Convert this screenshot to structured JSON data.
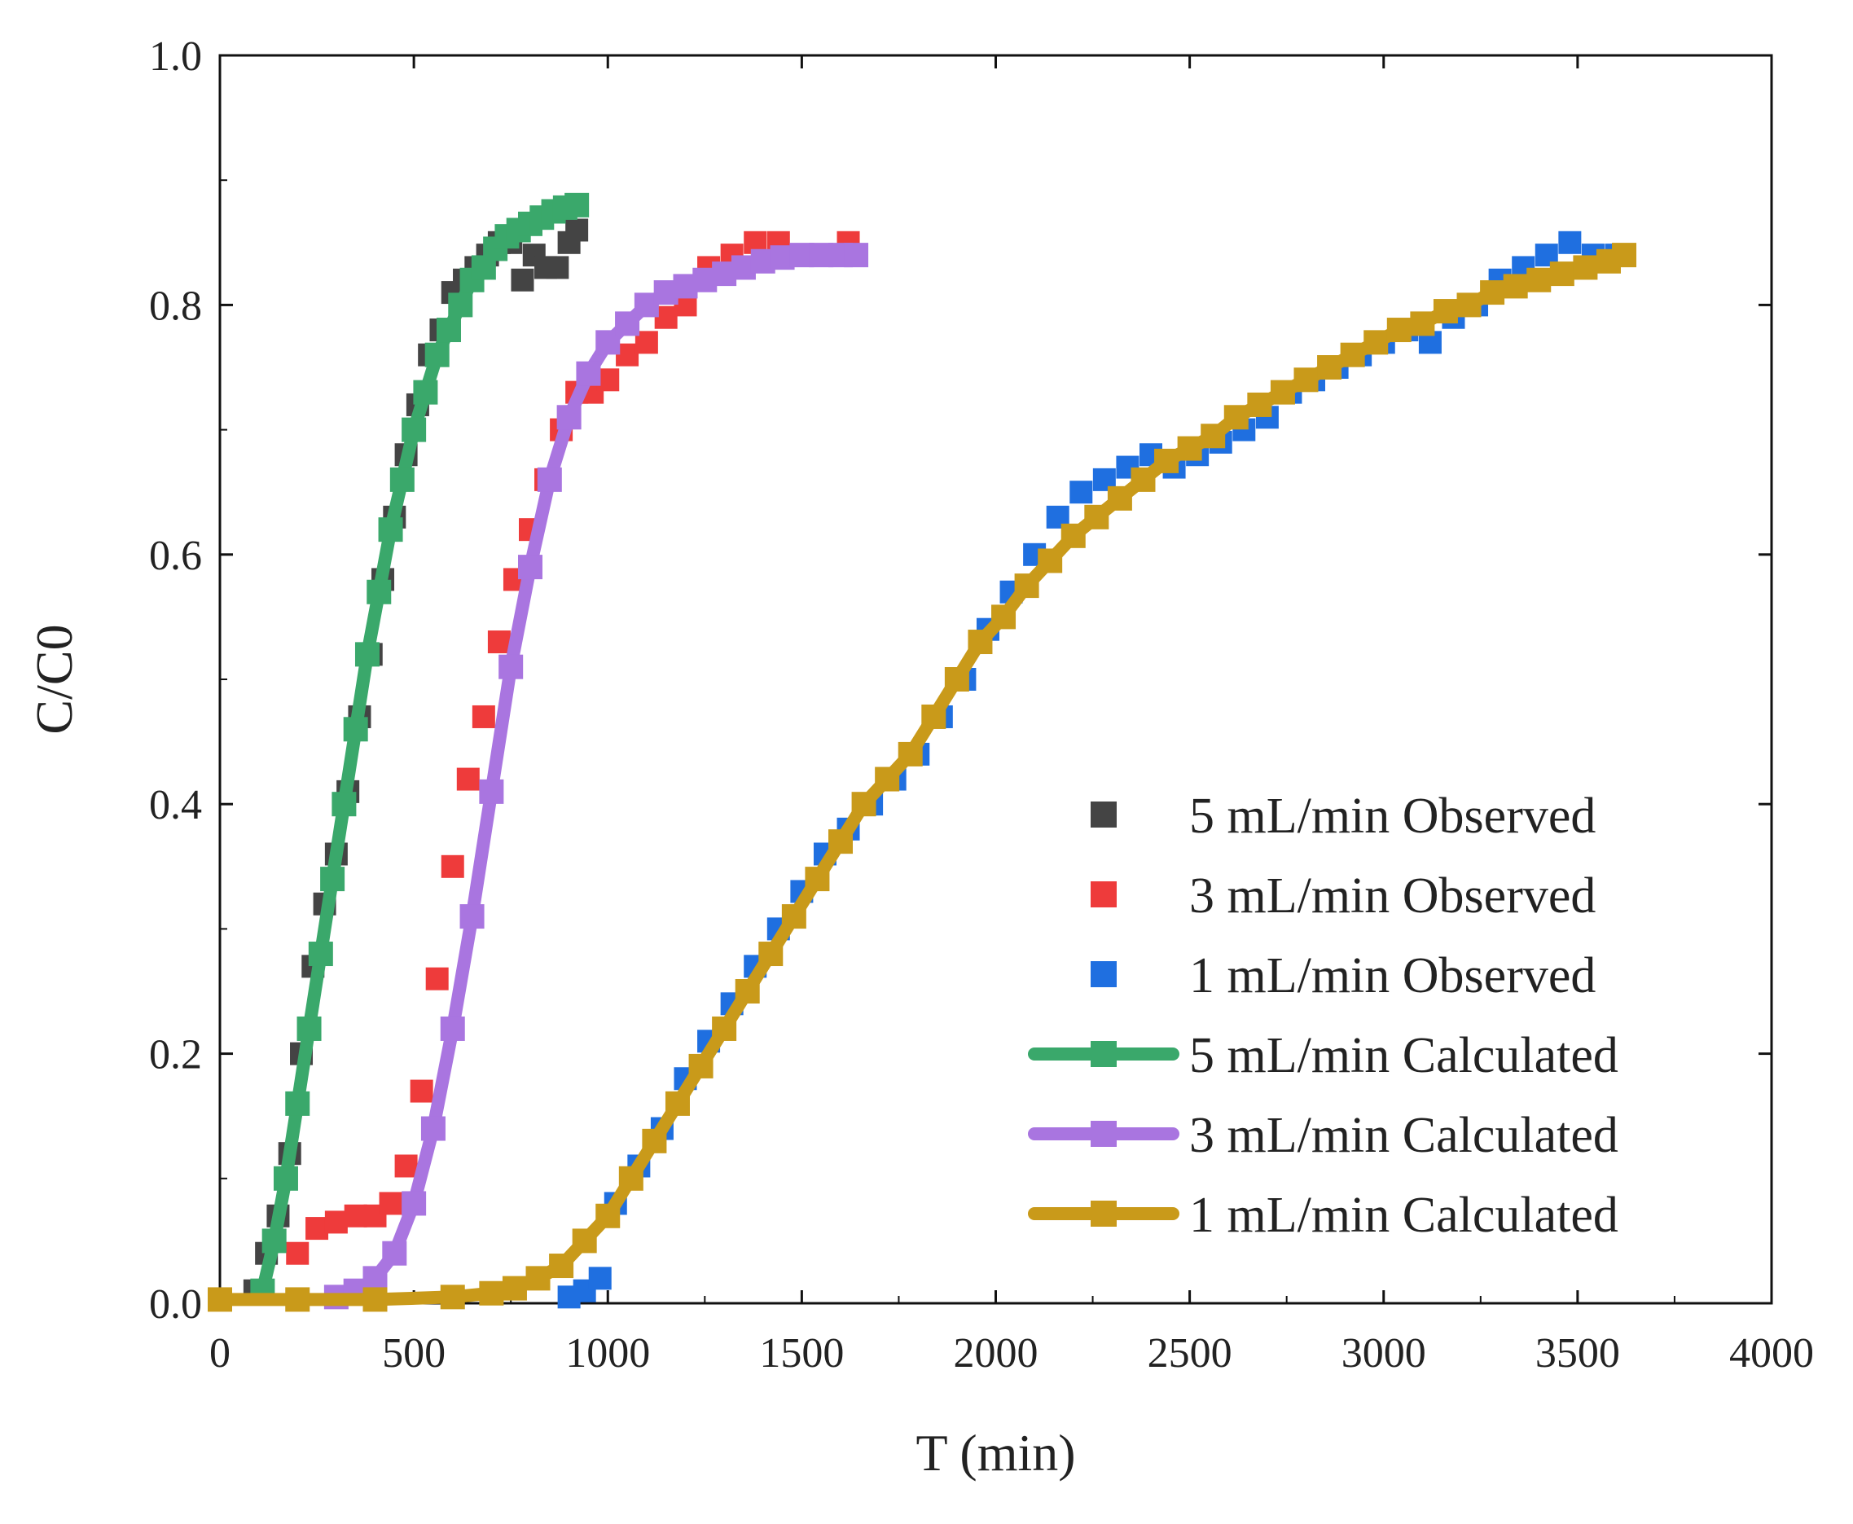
{
  "chart_data": {
    "type": "scatter",
    "title": "",
    "xlabel": "T (min)",
    "ylabel": "C/C0",
    "xlim": [
      0,
      4000
    ],
    "ylim": [
      0.0,
      1.0
    ],
    "x_ticks": [
      0,
      500,
      1000,
      1500,
      2000,
      2500,
      3000,
      3500,
      4000
    ],
    "x_tick_labels": [
      "0",
      "500",
      "1000",
      "1500",
      "2000",
      "2500",
      "3000",
      "3500",
      "4000"
    ],
    "y_ticks": [
      0.0,
      0.2,
      0.4,
      0.6,
      0.8,
      1.0
    ],
    "y_tick_labels": [
      "0.0",
      "0.2",
      "0.4",
      "0.6",
      "0.8",
      "1.0"
    ],
    "legend_position": "bottom-right",
    "series": [
      {
        "name": "5 mL/min Observed",
        "kind": "observed",
        "color": "#444444",
        "x": [
          90,
          120,
          150,
          180,
          210,
          240,
          270,
          300,
          330,
          360,
          390,
          420,
          450,
          480,
          510,
          540,
          570,
          600,
          630,
          660,
          690,
          720,
          750,
          780,
          810,
          840,
          870,
          900,
          920
        ],
        "y": [
          0.01,
          0.04,
          0.07,
          0.12,
          0.2,
          0.27,
          0.32,
          0.36,
          0.41,
          0.47,
          0.52,
          0.58,
          0.63,
          0.68,
          0.72,
          0.76,
          0.78,
          0.81,
          0.82,
          0.83,
          0.84,
          0.85,
          0.85,
          0.82,
          0.84,
          0.83,
          0.83,
          0.85,
          0.86
        ]
      },
      {
        "name": "3 mL/min Observed",
        "kind": "observed",
        "color": "#ee3b3b",
        "x": [
          200,
          250,
          300,
          350,
          400,
          440,
          480,
          520,
          560,
          600,
          640,
          680,
          720,
          760,
          800,
          840,
          880,
          920,
          960,
          1000,
          1050,
          1100,
          1150,
          1200,
          1260,
          1320,
          1380,
          1440,
          1500,
          1560,
          1620
        ],
        "y": [
          0.04,
          0.06,
          0.065,
          0.07,
          0.07,
          0.08,
          0.11,
          0.17,
          0.26,
          0.35,
          0.42,
          0.47,
          0.53,
          0.58,
          0.62,
          0.66,
          0.7,
          0.73,
          0.73,
          0.74,
          0.76,
          0.77,
          0.79,
          0.8,
          0.83,
          0.84,
          0.85,
          0.85,
          0.84,
          0.84,
          0.85
        ]
      },
      {
        "name": "1 mL/min Observed",
        "kind": "observed",
        "color": "#1f6fe0",
        "x": [
          900,
          940,
          980,
          1020,
          1080,
          1140,
          1200,
          1260,
          1320,
          1380,
          1440,
          1500,
          1560,
          1620,
          1680,
          1740,
          1800,
          1860,
          1920,
          1980,
          2040,
          2100,
          2160,
          2220,
          2280,
          2340,
          2400,
          2460,
          2520,
          2580,
          2640,
          2700,
          2760,
          2820,
          2880,
          2940,
          3000,
          3060,
          3120,
          3180,
          3240,
          3300,
          3360,
          3420,
          3480,
          3540,
          3600
        ],
        "y": [
          0.005,
          0.01,
          0.02,
          0.08,
          0.11,
          0.14,
          0.18,
          0.21,
          0.24,
          0.27,
          0.3,
          0.33,
          0.36,
          0.38,
          0.4,
          0.42,
          0.44,
          0.47,
          0.5,
          0.54,
          0.57,
          0.6,
          0.63,
          0.65,
          0.66,
          0.67,
          0.68,
          0.67,
          0.68,
          0.69,
          0.7,
          0.71,
          0.73,
          0.74,
          0.75,
          0.76,
          0.77,
          0.78,
          0.77,
          0.79,
          0.8,
          0.82,
          0.83,
          0.84,
          0.85,
          0.84,
          0.84
        ]
      },
      {
        "name": "5 mL/min Calculated",
        "kind": "calculated",
        "color": "#3aa86b",
        "x": [
          110,
          140,
          170,
          200,
          230,
          260,
          290,
          320,
          350,
          380,
          410,
          440,
          470,
          500,
          530,
          560,
          590,
          620,
          650,
          680,
          710,
          740,
          770,
          800,
          830,
          860,
          890,
          920
        ],
        "y": [
          0.01,
          0.05,
          0.1,
          0.16,
          0.22,
          0.28,
          0.34,
          0.4,
          0.46,
          0.52,
          0.57,
          0.62,
          0.66,
          0.7,
          0.73,
          0.76,
          0.78,
          0.8,
          0.82,
          0.83,
          0.845,
          0.855,
          0.86,
          0.865,
          0.87,
          0.875,
          0.878,
          0.88
        ]
      },
      {
        "name": "3 mL/min Calculated",
        "kind": "calculated",
        "color": "#a975e0",
        "x": [
          300,
          350,
          400,
          450,
          500,
          550,
          600,
          650,
          700,
          750,
          800,
          850,
          900,
          950,
          1000,
          1050,
          1100,
          1150,
          1200,
          1250,
          1300,
          1350,
          1400,
          1450,
          1500,
          1550,
          1600,
          1640
        ],
        "y": [
          0.005,
          0.01,
          0.02,
          0.04,
          0.08,
          0.14,
          0.22,
          0.31,
          0.41,
          0.51,
          0.59,
          0.66,
          0.71,
          0.745,
          0.77,
          0.785,
          0.8,
          0.81,
          0.815,
          0.82,
          0.825,
          0.83,
          0.835,
          0.838,
          0.84,
          0.84,
          0.84,
          0.84
        ]
      },
      {
        "name": "1 mL/min Calculated",
        "kind": "calculated",
        "color": "#c99a1a",
        "x": [
          0,
          200,
          400,
          600,
          700,
          760,
          820,
          880,
          940,
          1000,
          1060,
          1120,
          1180,
          1240,
          1300,
          1360,
          1420,
          1480,
          1540,
          1600,
          1660,
          1720,
          1780,
          1840,
          1900,
          1960,
          2020,
          2080,
          2140,
          2200,
          2260,
          2320,
          2380,
          2440,
          2500,
          2560,
          2620,
          2680,
          2740,
          2800,
          2860,
          2920,
          2980,
          3040,
          3100,
          3160,
          3220,
          3280,
          3340,
          3400,
          3460,
          3520,
          3580,
          3620
        ],
        "y": [
          0.003,
          0.003,
          0.003,
          0.005,
          0.008,
          0.012,
          0.02,
          0.03,
          0.05,
          0.07,
          0.1,
          0.13,
          0.16,
          0.19,
          0.22,
          0.25,
          0.28,
          0.31,
          0.34,
          0.37,
          0.4,
          0.42,
          0.44,
          0.47,
          0.5,
          0.53,
          0.55,
          0.575,
          0.595,
          0.615,
          0.63,
          0.645,
          0.66,
          0.675,
          0.685,
          0.695,
          0.71,
          0.72,
          0.73,
          0.74,
          0.75,
          0.76,
          0.77,
          0.78,
          0.785,
          0.795,
          0.8,
          0.81,
          0.815,
          0.82,
          0.825,
          0.83,
          0.835,
          0.84
        ]
      }
    ]
  }
}
